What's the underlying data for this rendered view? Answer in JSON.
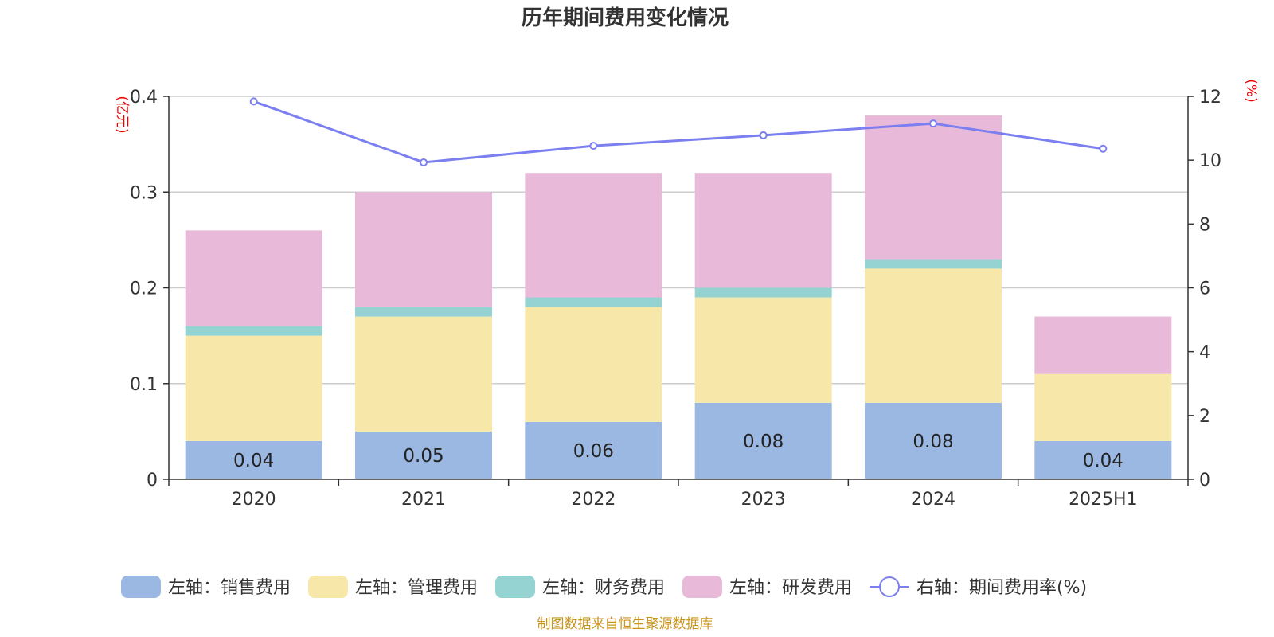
{
  "chart_data": {
    "type": "bar",
    "title": "历年期间费用变化情况",
    "categories": [
      "2020",
      "2021",
      "2022",
      "2023",
      "2024",
      "2025H1"
    ],
    "stacked": true,
    "left_axis": {
      "unit": "(亿元)",
      "range": [
        0,
        0.4
      ],
      "ticks": [
        "0",
        "0.1",
        "0.2",
        "0.3",
        "0.4"
      ],
      "tick_values": [
        0,
        0.1,
        0.2,
        0.3,
        0.4
      ]
    },
    "right_axis": {
      "unit": "(%)",
      "range": [
        0,
        12
      ],
      "ticks": [
        "0",
        "2",
        "4",
        "6",
        "8",
        "10",
        "12"
      ],
      "tick_values": [
        0,
        2,
        4,
        6,
        8,
        10,
        12
      ]
    },
    "series": [
      {
        "name": "左轴：销售费用",
        "type": "bar",
        "axis": "left",
        "color": "#9bb8e2",
        "values": [
          0.04,
          0.05,
          0.06,
          0.08,
          0.08,
          0.04
        ],
        "labels": [
          "0.04",
          "0.05",
          "0.06",
          "0.08",
          "0.08",
          "0.04"
        ]
      },
      {
        "name": "左轴：管理费用",
        "type": "bar",
        "axis": "left",
        "color": "#f7e7a8",
        "values": [
          0.11,
          0.12,
          0.12,
          0.11,
          0.14,
          0.07
        ]
      },
      {
        "name": "左轴：财务费用",
        "type": "bar",
        "axis": "left",
        "color": "#95d3d3",
        "values": [
          0.01,
          0.01,
          0.01,
          0.01,
          0.01,
          0.0
        ]
      },
      {
        "name": "左轴：研发费用",
        "type": "bar",
        "axis": "left",
        "color": "#e8b9d8",
        "values": [
          0.1,
          0.12,
          0.13,
          0.12,
          0.15,
          0.06
        ]
      },
      {
        "name": "右轴：期间费用率(%)",
        "type": "line",
        "axis": "right",
        "color": "#7b7ff0",
        "values": [
          11.84,
          9.93,
          10.45,
          10.78,
          11.15,
          10.36
        ]
      }
    ],
    "grid": true,
    "legend_position": "bottom"
  },
  "source_note": "制图数据来自恒生聚源数据库"
}
